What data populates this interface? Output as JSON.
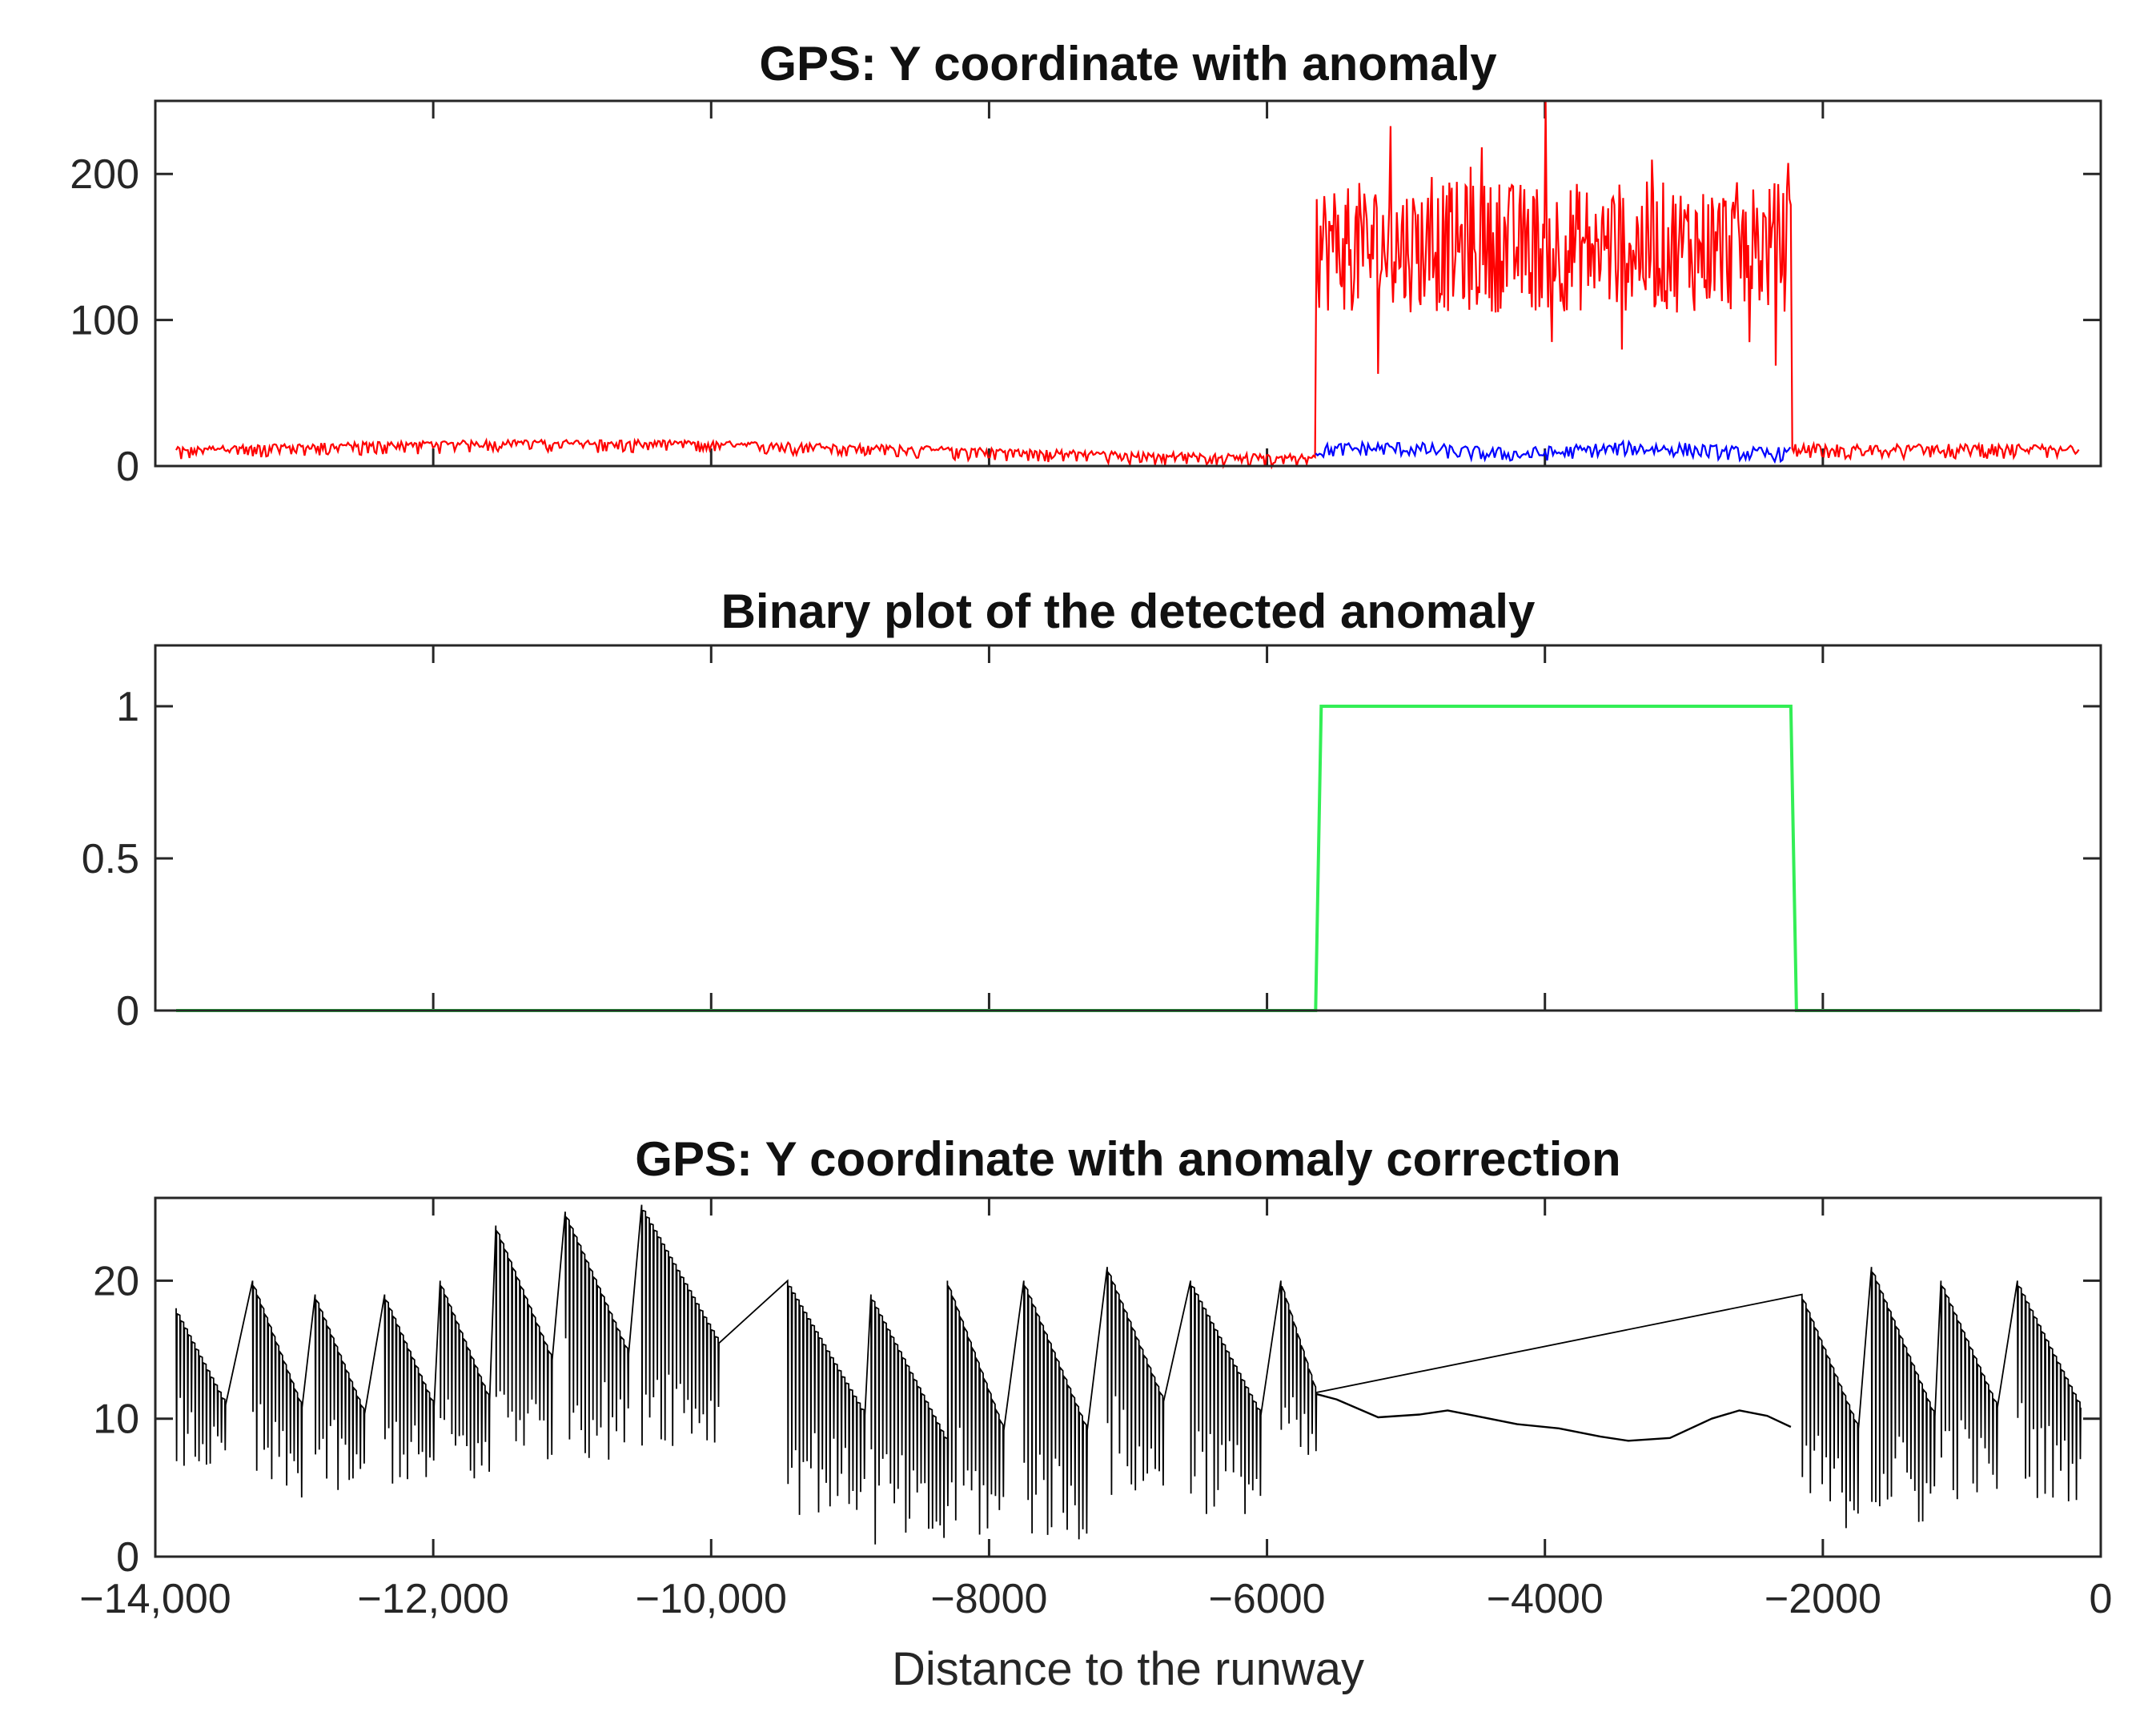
{
  "chart_data": [
    {
      "type": "line",
      "title": "GPS: Y coordinate with anomaly",
      "xlabel": "",
      "ylabel": "",
      "xlim": [
        -14000,
        0
      ],
      "ylim": [
        0,
        250
      ],
      "yticks": [
        0,
        100,
        200
      ],
      "ytick_labels": [
        "0",
        "100",
        "200"
      ],
      "xticks": [
        -14000,
        -12000,
        -10000,
        -8000,
        -6000,
        -4000,
        -2000,
        0
      ],
      "show_xtick_labels": false,
      "anomaly_start": -5650,
      "anomaly_end": -2230,
      "series": [
        {
          "name": "GPS Y with anomaly",
          "color": "#ff0000",
          "description_values": {
            "normal_range": [
              3,
              25
            ],
            "anomaly_mean": 150,
            "anomaly_range": [
              62,
              250
            ]
          }
        },
        {
          "name": "True GPS Y during anomaly",
          "color": "#0000ff",
          "description_values": {
            "range": [
              4,
              20
            ]
          }
        }
      ]
    },
    {
      "type": "line",
      "title": "Binary plot of the detected anomaly",
      "xlabel": "",
      "ylabel": "",
      "xlim": [
        -14000,
        0
      ],
      "ylim": [
        0,
        1.2
      ],
      "yticks": [
        0,
        0.5,
        1
      ],
      "ytick_labels": [
        "0",
        "0.5",
        "1"
      ],
      "xticks": [
        -14000,
        -12000,
        -10000,
        -8000,
        -6000,
        -4000,
        -2000,
        0
      ],
      "show_xtick_labels": false,
      "series": [
        {
          "name": "Detected anomaly",
          "color": "#33ee55",
          "x": [
            -13850,
            -5650,
            -5610,
            -2230,
            -2190,
            -150
          ],
          "y": [
            0,
            0,
            1,
            1,
            0,
            0
          ]
        }
      ]
    },
    {
      "type": "line",
      "title": "GPS: Y coordinate with anomaly correction",
      "xlabel": "Distance to the runway",
      "ylabel": "",
      "xlim": [
        -14000,
        0
      ],
      "ylim": [
        0,
        26
      ],
      "yticks": [
        0,
        10,
        20
      ],
      "ytick_labels": [
        "0",
        "10",
        "20"
      ],
      "xticks": [
        -14000,
        -12000,
        -10000,
        -8000,
        -6000,
        -4000,
        -2000,
        0
      ],
      "xtick_labels": [
        "−14,000",
        "−12,000",
        "−10,000",
        "−8000",
        "−6000",
        "−4000",
        "−2000",
        "0"
      ],
      "show_xtick_labels": true,
      "series": [
        {
          "name": "Corrected GPS Y",
          "color": "#000000",
          "smooth_segment": {
            "x": [
              -5650,
              -5500,
              -5200,
              -4900,
              -4700,
              -4500,
              -4200,
              -3900,
              -3600,
              -3400,
              -3100,
              -2800,
              -2600,
              -2400,
              -2230
            ],
            "y": [
              11.8,
              11.4,
              10.1,
              10.3,
              10.6,
              10.2,
              9.6,
              9.3,
              8.7,
              8.4,
              8.6,
              10.0,
              10.6,
              10.2,
              9.4
            ]
          },
          "sawtooth_range": [
            0,
            25.5
          ]
        }
      ]
    }
  ]
}
